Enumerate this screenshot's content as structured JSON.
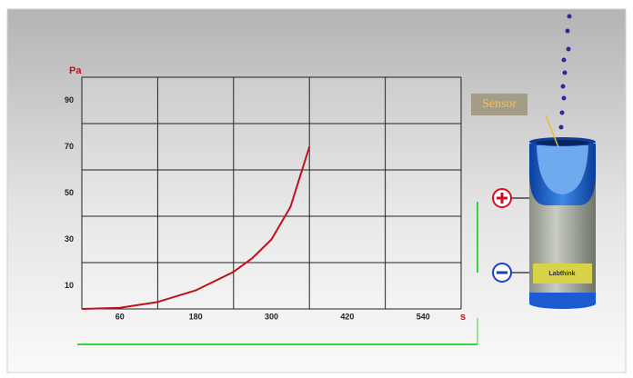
{
  "chart_data": {
    "type": "line",
    "y_label": "Pa",
    "x_label": "s",
    "x": [
      0,
      60,
      120,
      180,
      240,
      270,
      300,
      330,
      360
    ],
    "series": [
      {
        "color": "#c0101a",
        "values": [
          0,
          0.5,
          3,
          8,
          16,
          22,
          30,
          44,
          70
        ]
      }
    ],
    "xlim": [
      0,
      600
    ],
    "xticks": [
      60,
      180,
      300,
      420,
      540
    ],
    "xgrid": [
      0,
      120,
      240,
      360,
      480,
      600
    ],
    "ylim": [
      0,
      100
    ],
    "yticks": [
      10,
      30,
      50,
      70,
      90
    ],
    "ygrid": [
      0,
      20,
      40,
      60,
      80,
      100
    ]
  },
  "sensor_label": "Sensor",
  "battery_label": "Labthink"
}
